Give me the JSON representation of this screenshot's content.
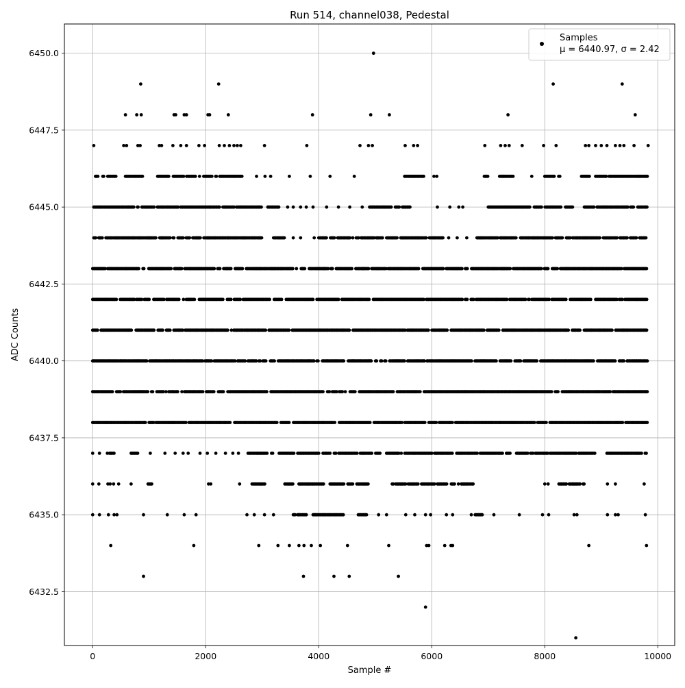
{
  "chart_data": {
    "type": "scatter",
    "title": "Run 514, channel038, Pedestal",
    "xlabel": "Sample #",
    "ylabel": "ADC Counts",
    "xlim": [
      -500,
      10300
    ],
    "ylim": [
      6430.75,
      6450.95
    ],
    "x_ticks": [
      0,
      2000,
      4000,
      6000,
      8000,
      10000
    ],
    "y_ticks": [
      6432.5,
      6435.0,
      6437.5,
      6440.0,
      6442.5,
      6445.0,
      6447.5,
      6450.0
    ],
    "x_tick_labels": [
      "0",
      "2000",
      "4000",
      "6000",
      "8000",
      "10000"
    ],
    "y_tick_labels": [
      "6432.5",
      "6435.0",
      "6437.5",
      "6440.0",
      "6442.5",
      "6445.0",
      "6447.5",
      "6450.0"
    ],
    "grid": true,
    "legend_position": "top-right",
    "marker_color": "#000000",
    "series": [
      {
        "name": "Samples",
        "stats_label": "μ = 6440.97, σ = 2.42",
        "x_range": [
          0,
          9830
        ],
        "dense_levels": [
          {
            "y": 6446,
            "segments": [
              [
                50,
                110
              ],
              [
                180,
                420
              ],
              [
                580,
                950
              ],
              [
                1150,
                2200
              ],
              [
                2250,
                2650
              ],
              [
                5520,
                5870
              ],
              [
                6930,
                7000
              ],
              [
                7200,
                7450
              ],
              [
                8000,
                8280
              ],
              [
                8650,
                8800
              ],
              [
                8900,
                9820
              ]
            ]
          },
          {
            "y": 6445,
            "segments": [
              [
                20,
                1520
              ],
              [
                1560,
                3000
              ],
              [
                3100,
                3300
              ],
              [
                4900,
                5620
              ],
              [
                7000,
                8500
              ],
              [
                8700,
                9820
              ]
            ]
          },
          {
            "y": 6444,
            "segments": [
              [
                20,
                3000
              ],
              [
                3200,
                3400
              ],
              [
                4000,
                6200
              ],
              [
                6800,
                9820
              ]
            ]
          },
          {
            "y": 6443,
            "segments": [
              [
                0,
                9820
              ]
            ]
          },
          {
            "y": 6442,
            "segments": [
              [
                0,
                9820
              ]
            ]
          },
          {
            "y": 6441,
            "segments": [
              [
                0,
                9820
              ]
            ]
          },
          {
            "y": 6440,
            "segments": [
              [
                0,
                9820
              ]
            ]
          },
          {
            "y": 6439,
            "segments": [
              [
                0,
                9820
              ]
            ]
          },
          {
            "y": 6438,
            "segments": [
              [
                0,
                9820
              ]
            ]
          },
          {
            "y": 6437,
            "segments": [
              [
                300,
                380
              ],
              [
                680,
                800
              ],
              [
                2750,
                3200
              ],
              [
                3300,
                5100
              ],
              [
                5200,
                7400
              ],
              [
                7500,
                8900
              ],
              [
                9100,
                9800
              ]
            ]
          },
          {
            "y": 6436,
            "segments": [
              [
                980,
                1050
              ],
              [
                2820,
                3050
              ],
              [
                3400,
                3600
              ],
              [
                3650,
                4100
              ],
              [
                4200,
                4900
              ],
              [
                5300,
                6050
              ],
              [
                6100,
                6800
              ],
              [
                8250,
                8700
              ]
            ]
          },
          {
            "y": 6435,
            "segments": [
              [
                3550,
                3800
              ],
              [
                3900,
                4450
              ],
              [
                4700,
                4850
              ],
              [
                6700,
                6900
              ]
            ]
          }
        ],
        "sparse_points": [
          [
            4970,
            6450
          ],
          [
            850,
            6449
          ],
          [
            2230,
            6449
          ],
          [
            8150,
            6449
          ],
          [
            9370,
            6449
          ],
          [
            580,
            6448
          ],
          [
            780,
            6448
          ],
          [
            860,
            6448
          ],
          [
            1440,
            6448
          ],
          [
            1470,
            6448
          ],
          [
            1620,
            6448
          ],
          [
            1660,
            6448
          ],
          [
            2040,
            6448
          ],
          [
            2070,
            6448
          ],
          [
            2400,
            6448
          ],
          [
            3890,
            6448
          ],
          [
            4920,
            6448
          ],
          [
            5250,
            6448
          ],
          [
            7350,
            6448
          ],
          [
            9600,
            6448
          ],
          [
            20,
            6447
          ],
          [
            550,
            6447
          ],
          [
            600,
            6447
          ],
          [
            800,
            6447
          ],
          [
            840,
            6447
          ],
          [
            1180,
            6447
          ],
          [
            1220,
            6447
          ],
          [
            1420,
            6447
          ],
          [
            1560,
            6447
          ],
          [
            1660,
            6447
          ],
          [
            1880,
            6447
          ],
          [
            1980,
            6447
          ],
          [
            2240,
            6447
          ],
          [
            2330,
            6447
          ],
          [
            2420,
            6447
          ],
          [
            2500,
            6447
          ],
          [
            2560,
            6447
          ],
          [
            2620,
            6447
          ],
          [
            3040,
            6447
          ],
          [
            3790,
            6447
          ],
          [
            4730,
            6447
          ],
          [
            4880,
            6447
          ],
          [
            4950,
            6447
          ],
          [
            5530,
            6447
          ],
          [
            5680,
            6447
          ],
          [
            5750,
            6447
          ],
          [
            6940,
            6447
          ],
          [
            7220,
            6447
          ],
          [
            7300,
            6447
          ],
          [
            7370,
            6447
          ],
          [
            7600,
            6447
          ],
          [
            7980,
            6447
          ],
          [
            8200,
            6447
          ],
          [
            8720,
            6447
          ],
          [
            8780,
            6447
          ],
          [
            8900,
            6447
          ],
          [
            9000,
            6447
          ],
          [
            9100,
            6447
          ],
          [
            9250,
            6447
          ],
          [
            9330,
            6447
          ],
          [
            9400,
            6447
          ],
          [
            9580,
            6447
          ],
          [
            9830,
            6447
          ],
          [
            2900,
            6446
          ],
          [
            3050,
            6446
          ],
          [
            3150,
            6446
          ],
          [
            3480,
            6446
          ],
          [
            3850,
            6446
          ],
          [
            4200,
            6446
          ],
          [
            4630,
            6446
          ],
          [
            6040,
            6446
          ],
          [
            6090,
            6446
          ],
          [
            7770,
            6446
          ],
          [
            3450,
            6445
          ],
          [
            3550,
            6445
          ],
          [
            3680,
            6445
          ],
          [
            3780,
            6445
          ],
          [
            3900,
            6445
          ],
          [
            4140,
            6445
          ],
          [
            4350,
            6445
          ],
          [
            4550,
            6445
          ],
          [
            4770,
            6445
          ],
          [
            6100,
            6445
          ],
          [
            6320,
            6445
          ],
          [
            6480,
            6445
          ],
          [
            6550,
            6445
          ],
          [
            3550,
            6444
          ],
          [
            3680,
            6444
          ],
          [
            3920,
            6444
          ],
          [
            6300,
            6444
          ],
          [
            6450,
            6444
          ],
          [
            6620,
            6444
          ],
          [
            0,
            6437
          ],
          [
            120,
            6437
          ],
          [
            260,
            6437
          ],
          [
            1020,
            6437
          ],
          [
            1280,
            6437
          ],
          [
            1460,
            6437
          ],
          [
            1600,
            6437
          ],
          [
            1690,
            6437
          ],
          [
            1900,
            6437
          ],
          [
            2030,
            6437
          ],
          [
            2180,
            6437
          ],
          [
            2350,
            6437
          ],
          [
            2480,
            6437
          ],
          [
            2580,
            6437
          ],
          [
            0,
            6436
          ],
          [
            110,
            6436
          ],
          [
            270,
            6436
          ],
          [
            310,
            6436
          ],
          [
            370,
            6436
          ],
          [
            460,
            6436
          ],
          [
            680,
            6436
          ],
          [
            2050,
            6436
          ],
          [
            2090,
            6436
          ],
          [
            2600,
            6436
          ],
          [
            8000,
            6436
          ],
          [
            8060,
            6436
          ],
          [
            9110,
            6436
          ],
          [
            9250,
            6436
          ],
          [
            9760,
            6436
          ],
          [
            0,
            6435
          ],
          [
            120,
            6435
          ],
          [
            280,
            6435
          ],
          [
            380,
            6435
          ],
          [
            430,
            6435
          ],
          [
            900,
            6435
          ],
          [
            1320,
            6435
          ],
          [
            1620,
            6435
          ],
          [
            1830,
            6435
          ],
          [
            2730,
            6435
          ],
          [
            2860,
            6435
          ],
          [
            3040,
            6435
          ],
          [
            3200,
            6435
          ],
          [
            5060,
            6435
          ],
          [
            5200,
            6435
          ],
          [
            5540,
            6435
          ],
          [
            5700,
            6435
          ],
          [
            5890,
            6435
          ],
          [
            5980,
            6435
          ],
          [
            6260,
            6435
          ],
          [
            6370,
            6435
          ],
          [
            7100,
            6435
          ],
          [
            7550,
            6435
          ],
          [
            7960,
            6435
          ],
          [
            8070,
            6435
          ],
          [
            8520,
            6435
          ],
          [
            8570,
            6435
          ],
          [
            9110,
            6435
          ],
          [
            9250,
            6435
          ],
          [
            9300,
            6435
          ],
          [
            9780,
            6435
          ],
          [
            320,
            6434
          ],
          [
            1790,
            6434
          ],
          [
            2940,
            6434
          ],
          [
            3280,
            6434
          ],
          [
            3480,
            6434
          ],
          [
            3650,
            6434
          ],
          [
            3740,
            6434
          ],
          [
            3870,
            6434
          ],
          [
            4030,
            6434
          ],
          [
            4510,
            6434
          ],
          [
            5240,
            6434
          ],
          [
            5910,
            6434
          ],
          [
            5950,
            6434
          ],
          [
            6230,
            6434
          ],
          [
            6340,
            6434
          ],
          [
            6370,
            6434
          ],
          [
            8780,
            6434
          ],
          [
            9800,
            6434
          ],
          [
            900,
            6433
          ],
          [
            3730,
            6433
          ],
          [
            4270,
            6433
          ],
          [
            4540,
            6433
          ],
          [
            5410,
            6433
          ],
          [
            5890,
            6432
          ],
          [
            8550,
            6431
          ]
        ]
      }
    ]
  }
}
